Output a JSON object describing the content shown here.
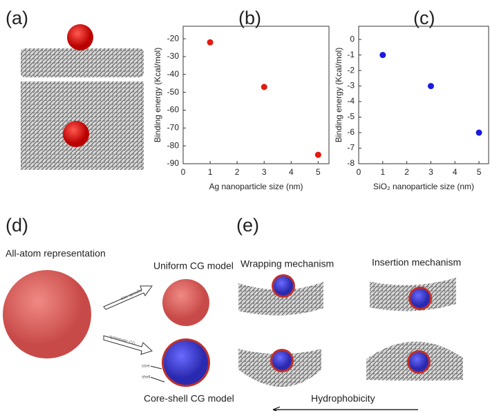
{
  "figure": {
    "panels": [
      "(a)",
      "(b)",
      "(c)",
      "(d)",
      "(e)"
    ],
    "all_atom": "All-atom representation",
    "uniform": "Uniform CG model",
    "core_shell": "Core-shell CG model",
    "arrow_top": "size-specific",
    "arrow_bottom": "systematic CG",
    "core": "core",
    "shell": "shell",
    "wrapping": "Wrapping mechanism",
    "insertion": "Insertion mechanism",
    "hydrophobicity": "Hydrophobicity"
  },
  "chart_data": [
    {
      "type": "scatter",
      "xlabel": "Ag nanoparticle size (nm)",
      "ylabel": "Binding energy (Kcal/mol)",
      "x": [
        1,
        3,
        5
      ],
      "values": [
        -22,
        -47,
        -85
      ],
      "color": "#e31a10",
      "xlim": [
        0,
        5.4
      ],
      "xticks": [
        0,
        1,
        2,
        3,
        4,
        5
      ],
      "ylim": [
        -90,
        -13
      ],
      "yticks": [
        -20,
        -30,
        -40,
        -50,
        -60,
        -70,
        -80,
        -90
      ]
    },
    {
      "type": "scatter",
      "xlabel": "SiO₂ nanoparticle size (nm)",
      "ylabel": "Binding energy (Kcal/mol)",
      "x": [
        1,
        3,
        5
      ],
      "values": [
        -1,
        -3,
        -6
      ],
      "color": "#1a1ae0",
      "xlim": [
        0,
        5.4
      ],
      "xticks": [
        0,
        1,
        2,
        3,
        4,
        5
      ],
      "ylim": [
        -8,
        0.85
      ],
      "yticks": [
        0,
        -1,
        -2,
        -3,
        -4,
        -5,
        -6,
        -7,
        -8
      ]
    }
  ]
}
